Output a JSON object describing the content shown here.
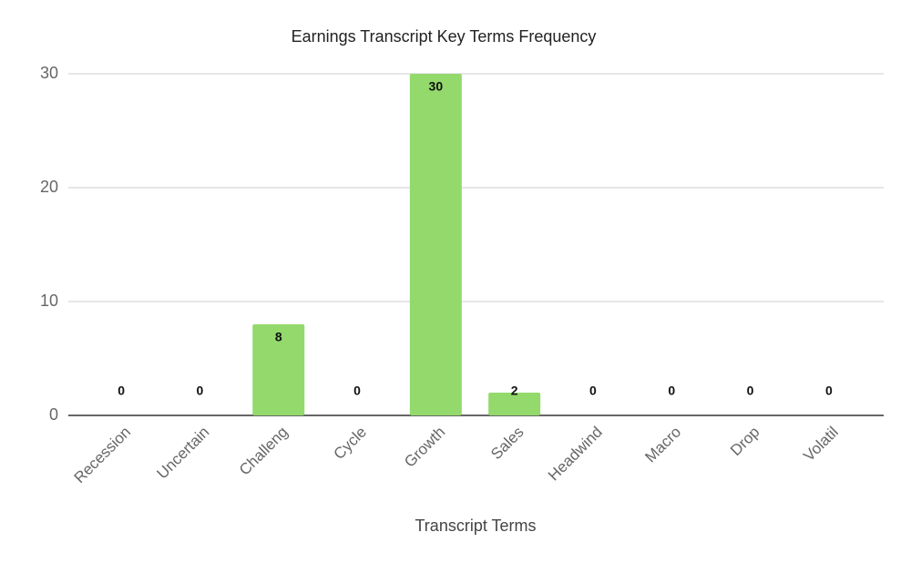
{
  "chart_data": {
    "type": "bar",
    "title": "Earnings Transcript Key Terms Frequency",
    "x_label": "Transcript Terms",
    "categories": [
      "Recession",
      "Uncertain",
      "Challeng",
      "Cycle",
      "Growth",
      "Sales",
      "Headwind",
      "Macro",
      "Drop",
      "Volatil"
    ],
    "values": [
      0,
      0,
      8,
      0,
      30,
      2,
      0,
      0,
      0,
      0
    ],
    "color": "#93d96c",
    "ylim": [
      0,
      30
    ],
    "yticks": [
      0,
      10,
      20,
      30
    ],
    "grid": true
  }
}
